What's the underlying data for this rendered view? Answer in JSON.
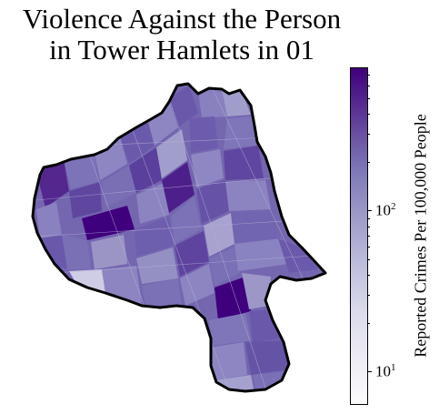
{
  "title": {
    "line1": "Violence Against the Person",
    "line2": "in Tower Hamlets in 01"
  },
  "colorbar": {
    "label": "Reported Crimes Per 100,000 People",
    "scale": "log",
    "colormap": "Purples",
    "ticks": [
      {
        "base": "10",
        "exp": "1"
      },
      {
        "base": "10",
        "exp": "2"
      }
    ]
  },
  "colors": {
    "darkest": "#3f007d",
    "dark": "#54278f",
    "mid": "#6a51a3",
    "light": "#9e9ac8",
    "lightest": "#fcfbfd",
    "boundary": "#000000"
  }
}
